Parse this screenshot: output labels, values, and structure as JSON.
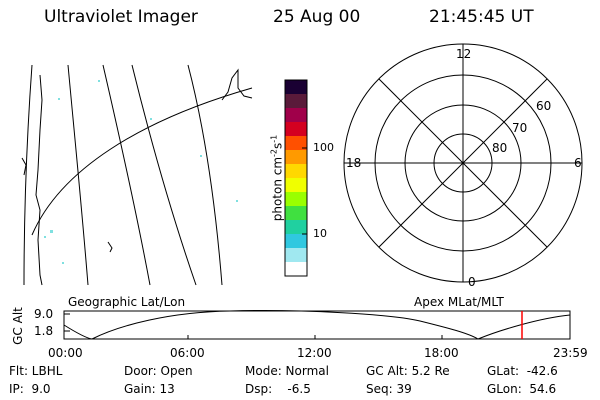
{
  "header": {
    "instrument": "Ultraviolet Imager",
    "date": "25 Aug 00",
    "time": "21:45:45 UT"
  },
  "color_bar": {
    "label": "photon cm",
    "label_exp1": "-2",
    "label_mid": "s",
    "label_exp2": "-1",
    "ticks": [
      "100",
      "10"
    ],
    "colors": [
      "#1a0033",
      "#5a1a3a",
      "#a0004a",
      "#d40020",
      "#ff5000",
      "#ff9a00",
      "#ffd800",
      "#f0ff00",
      "#9aff00",
      "#40e040",
      "#20d0a0",
      "#30c8e0",
      "#a0e8f0",
      "#ffffff"
    ]
  },
  "panels": {
    "geo_title": "Geographic Lat/Lon",
    "apex_title": "Apex MLat/MLT"
  },
  "polar": {
    "mlt_labels": [
      "12",
      "18",
      "6",
      "0"
    ],
    "lat_labels": [
      "60",
      "70",
      "80"
    ]
  },
  "altitude_plot": {
    "ylabel": "GC Alt",
    "y_ticks": [
      "9.0",
      "1.8"
    ],
    "x_ticks": [
      "00:00",
      "06:00",
      "12:00",
      "18:00",
      "23:59"
    ],
    "marker_color": "#ff0000"
  },
  "info": {
    "flt": "Flt: LBHL",
    "ip": "IP:  9.0",
    "door": "Door: Open",
    "gain": "Gain: 13",
    "mode": "Mode: Normal",
    "dsp": "Dsp:    -6.5",
    "gcalt": "GC Alt: 5.2 Re",
    "seq": "Seq: 39",
    "glat": "GLat:  -42.6",
    "glon": "GLon:  54.6"
  }
}
